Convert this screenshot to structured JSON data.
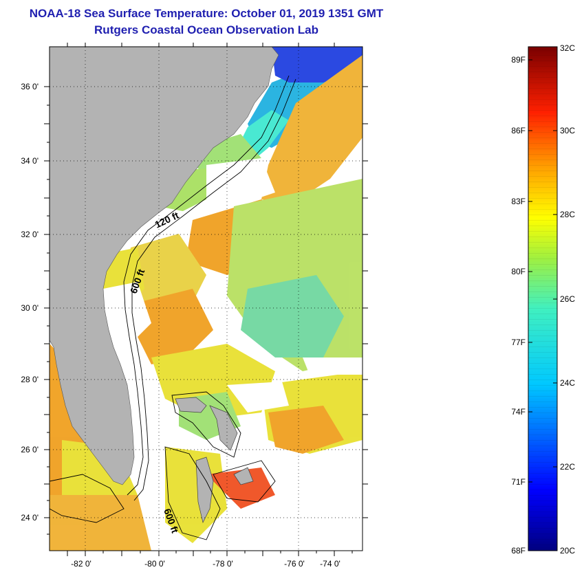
{
  "header": {
    "title": "NOAA-18 Sea Surface Temperature:  October 01, 2019 1351 GMT",
    "subtitle": "Rutgers Coastal Ocean Observation Lab"
  },
  "map": {
    "lat_labels": [
      "36 0'",
      "34 0'",
      "32 0'",
      "30 0'",
      "28 0'",
      "26 0'",
      "24 0'"
    ],
    "lon_labels": [
      "-82 0'",
      "-80 0'",
      "-78 0'",
      "-76 0'",
      "-74 0'"
    ],
    "contour_labels": [
      "120 ft",
      "600 ft",
      "600 ft"
    ]
  },
  "colorbar": {
    "f_labels": [
      "89F",
      "86F",
      "83F",
      "80F",
      "77F",
      "74F",
      "71F",
      "68F"
    ],
    "c_labels": [
      "32C",
      "30C",
      "28C",
      "26C",
      "24C",
      "22C",
      "20C"
    ],
    "top_color": "#7a0000",
    "bottom_color": "#000080"
  },
  "colors": {
    "land": "#b3b3b3",
    "title": "#1f1fb0",
    "sst_orange": "#f0a020",
    "sst_yellow": "#e8e030",
    "sst_green": "#9ee070",
    "sst_cyan": "#40e8d0",
    "sst_blue": "#2040e0"
  }
}
